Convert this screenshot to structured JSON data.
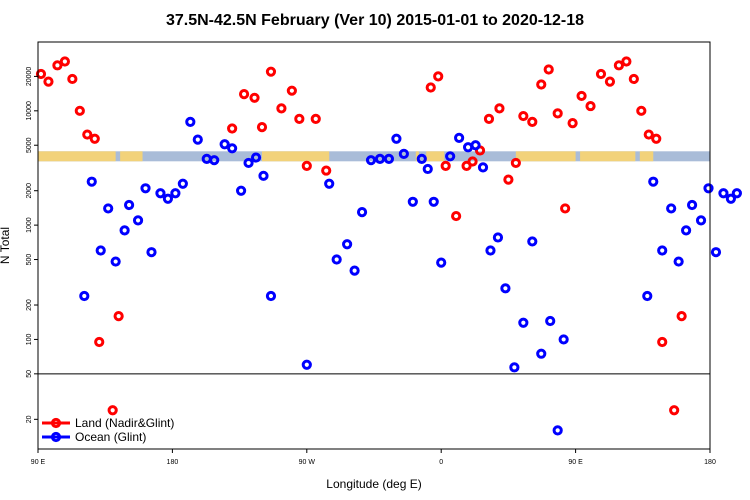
{
  "chart_data": {
    "type": "scatter",
    "title": "37.5N-42.5N February (Ver 10)   2015-01-01 to 2020-12-18",
    "xlabel": "Longitude (deg E)",
    "ylabel": "N Total",
    "y_scale": "log",
    "x_axis": "longitude, wraps from 90 E through 180 and 90 W back to 180",
    "x_ticks": [
      {
        "pos": 0,
        "label": "90 E"
      },
      {
        "pos": 90,
        "label": "180"
      },
      {
        "pos": 180,
        "label": "90 W"
      },
      {
        "pos": 270,
        "label": "0"
      },
      {
        "pos": 360,
        "label": "90 E"
      },
      {
        "pos": 450,
        "label": "180"
      }
    ],
    "y_ticks": [
      {
        "value": 20,
        "label": "20"
      },
      {
        "value": 50,
        "label": "50"
      },
      {
        "value": 100,
        "label": "100"
      },
      {
        "value": 200,
        "label": "200"
      },
      {
        "value": 500,
        "label": "500"
      },
      {
        "value": 1000,
        "label": "1000"
      },
      {
        "value": 2000,
        "label": "2000"
      },
      {
        "value": 5000,
        "label": "5000"
      },
      {
        "value": 10000,
        "label": "10000"
      },
      {
        "value": 20000,
        "label": "20000"
      }
    ],
    "ylim": [
      11,
      40000
    ],
    "reference_line": 50,
    "surface_band": {
      "y": 4000,
      "land_color": "#f2d27a",
      "ocean_color": "#a9bcd8",
      "land_segments": [
        [
          0,
          52
        ],
        [
          55,
          70
        ],
        [
          150,
          195
        ],
        [
          253,
          255
        ],
        [
          260,
          272
        ],
        [
          320,
          360
        ],
        [
          363,
          400
        ],
        [
          403,
          412
        ]
      ]
    },
    "series": [
      {
        "name": "Land (Nadir&Glint)",
        "color": "#ff0000",
        "points": [
          [
            2,
            21000
          ],
          [
            7,
            18000
          ],
          [
            13,
            25000
          ],
          [
            18,
            27000
          ],
          [
            23,
            19000
          ],
          [
            28,
            10000
          ],
          [
            33,
            6200
          ],
          [
            38,
            5700
          ],
          [
            41,
            95
          ],
          [
            50,
            24
          ],
          [
            54,
            160
          ],
          [
            130,
            7000
          ],
          [
            138,
            14000
          ],
          [
            145,
            13000
          ],
          [
            150,
            7200
          ],
          [
            156,
            22000
          ],
          [
            163,
            10500
          ],
          [
            170,
            15000
          ],
          [
            175,
            8500
          ],
          [
            180,
            3300
          ],
          [
            186,
            8500
          ],
          [
            193,
            3000
          ],
          [
            263,
            16000
          ],
          [
            268,
            20000
          ],
          [
            273,
            3300
          ],
          [
            280,
            1200
          ],
          [
            287,
            3300
          ],
          [
            291,
            3600
          ],
          [
            296,
            4500
          ],
          [
            302,
            8500
          ],
          [
            309,
            10500
          ],
          [
            315,
            2500
          ],
          [
            320,
            3500
          ],
          [
            325,
            9000
          ],
          [
            331,
            8000
          ],
          [
            337,
            17000
          ],
          [
            342,
            23000
          ],
          [
            348,
            9500
          ],
          [
            353,
            1400
          ],
          [
            358,
            7800
          ],
          [
            364,
            13500
          ],
          [
            370,
            11000
          ],
          [
            377,
            21000
          ],
          [
            383,
            18000
          ],
          [
            389,
            25000
          ],
          [
            394,
            27000
          ],
          [
            399,
            19000
          ],
          [
            404,
            10000
          ],
          [
            409,
            6200
          ],
          [
            414,
            5700
          ],
          [
            418,
            95
          ],
          [
            426,
            24
          ],
          [
            431,
            160
          ]
        ]
      },
      {
        "name": "Ocean (Glint)",
        "color": "#0000ff",
        "points": [
          [
            31,
            240
          ],
          [
            36,
            2400
          ],
          [
            42,
            600
          ],
          [
            47,
            1400
          ],
          [
            52,
            480
          ],
          [
            58,
            900
          ],
          [
            61,
            1500
          ],
          [
            67,
            1100
          ],
          [
            72,
            2100
          ],
          [
            76,
            580
          ],
          [
            82,
            1900
          ],
          [
            87,
            1700
          ],
          [
            92,
            1900
          ],
          [
            97,
            2300
          ],
          [
            102,
            8000
          ],
          [
            107,
            5600
          ],
          [
            113,
            3800
          ],
          [
            118,
            3700
          ],
          [
            125,
            5100
          ],
          [
            130,
            4700
          ],
          [
            136,
            2000
          ],
          [
            141,
            3500
          ],
          [
            146,
            3900
          ],
          [
            151,
            2700
          ],
          [
            156,
            240
          ],
          [
            180,
            60
          ],
          [
            195,
            2300
          ],
          [
            200,
            500
          ],
          [
            207,
            680
          ],
          [
            212,
            400
          ],
          [
            217,
            1300
          ],
          [
            223,
            3700
          ],
          [
            229,
            3800
          ],
          [
            235,
            3800
          ],
          [
            240,
            5700
          ],
          [
            245,
            4200
          ],
          [
            251,
            1600
          ],
          [
            257,
            3800
          ],
          [
            261,
            3100
          ],
          [
            265,
            1600
          ],
          [
            270,
            470
          ],
          [
            276,
            4000
          ],
          [
            282,
            5800
          ],
          [
            288,
            4800
          ],
          [
            293,
            5000
          ],
          [
            298,
            3200
          ],
          [
            303,
            600
          ],
          [
            308,
            780
          ],
          [
            313,
            280
          ],
          [
            319,
            57
          ],
          [
            325,
            140
          ],
          [
            331,
            720
          ],
          [
            337,
            75
          ],
          [
            343,
            145
          ],
          [
            348,
            16
          ],
          [
            352,
            100
          ],
          [
            408,
            240
          ],
          [
            412,
            2400
          ],
          [
            418,
            600
          ],
          [
            424,
            1400
          ],
          [
            429,
            480
          ],
          [
            434,
            900
          ],
          [
            438,
            1500
          ],
          [
            444,
            1100
          ],
          [
            449,
            2100
          ],
          [
            454,
            580
          ],
          [
            459,
            1900
          ],
          [
            464,
            1700
          ],
          [
            468,
            1900
          ]
        ]
      }
    ],
    "legend_position": "bottom-left"
  }
}
